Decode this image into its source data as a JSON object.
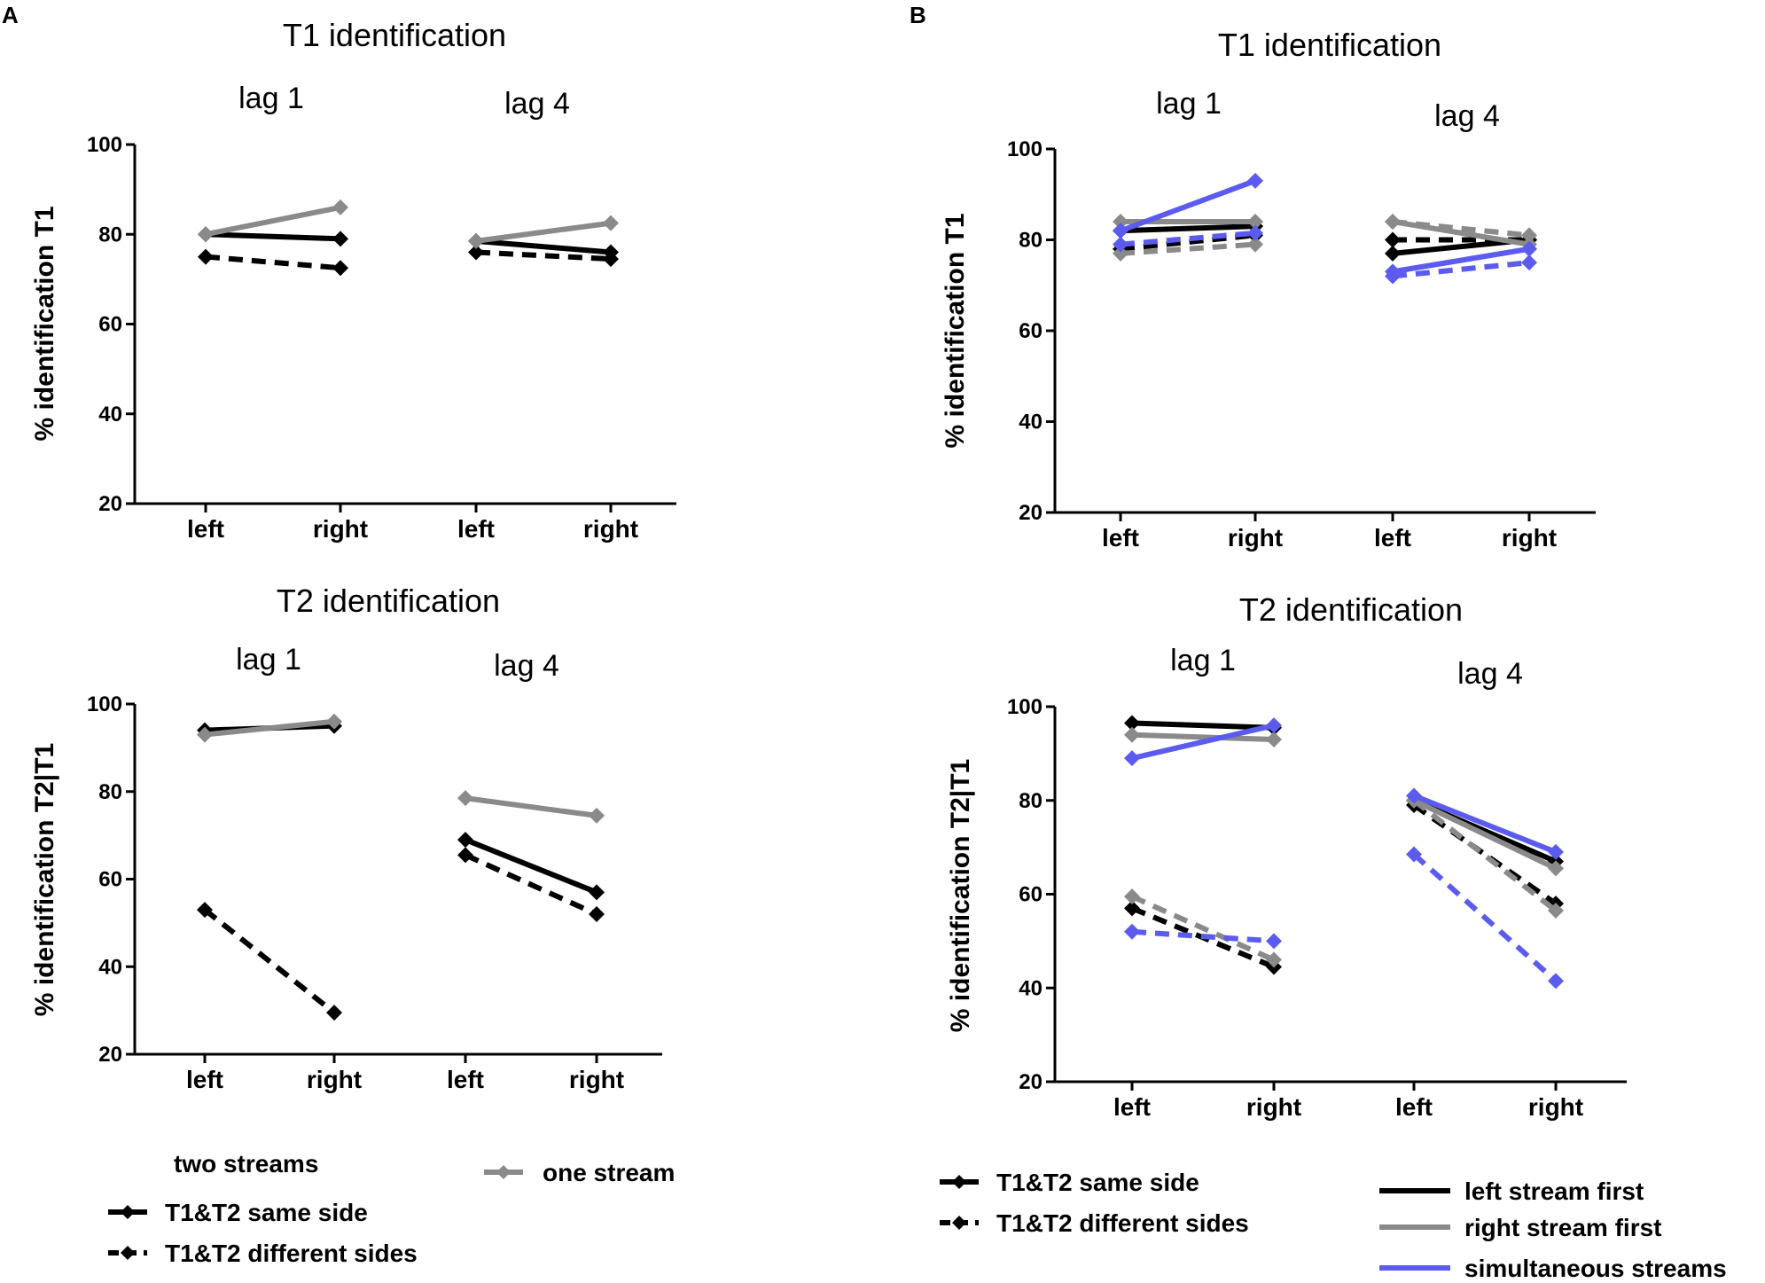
{
  "figure_labels": {
    "a": "A",
    "b": "B"
  },
  "colors": {
    "black": "#000000",
    "gray": "#8a8a8a",
    "blue": "#5b5bf0"
  },
  "chart_data": [
    {
      "id": "A1",
      "type": "line",
      "title": "T1 identification",
      "group_labels": [
        "lag 1",
        "lag 4"
      ],
      "categories": [
        "left",
        "right",
        "left",
        "right"
      ],
      "ylabel": "% identification T1",
      "ylim": [
        20,
        100
      ],
      "yticks": [
        "20",
        "40",
        "60",
        "80",
        "100"
      ],
      "series": [
        {
          "name": "T1&T2 same side",
          "color": "#000000",
          "dash": "solid",
          "lag1": [
            80,
            79
          ],
          "lag4": [
            78.5,
            76
          ]
        },
        {
          "name": "T1&T2 different sides",
          "color": "#000000",
          "dash": "dashed",
          "lag1": [
            75,
            72.5
          ],
          "lag4": [
            76,
            74.5
          ]
        },
        {
          "name": "one stream",
          "color": "#8a8a8a",
          "dash": "solid",
          "lag1": [
            80,
            86
          ],
          "lag4": [
            78.5,
            82.5
          ]
        }
      ]
    },
    {
      "id": "A2",
      "type": "line",
      "title": "T2 identification",
      "group_labels": [
        "lag 1",
        "lag 4"
      ],
      "categories": [
        "left",
        "right",
        "left",
        "right"
      ],
      "ylabel": "% identification T2|T1",
      "ylim": [
        20,
        100
      ],
      "yticks": [
        "20",
        "40",
        "60",
        "80",
        "100"
      ],
      "series": [
        {
          "name": "T1&T2 same side",
          "color": "#000000",
          "dash": "solid",
          "lag1": [
            94,
            95
          ],
          "lag4": [
            69,
            57
          ]
        },
        {
          "name": "T1&T2 different sides",
          "color": "#000000",
          "dash": "dashed",
          "lag1": [
            53,
            29.5
          ],
          "lag4": [
            65.5,
            52
          ]
        },
        {
          "name": "one stream",
          "color": "#8a8a8a",
          "dash": "solid",
          "lag1": [
            93,
            96
          ],
          "lag4": [
            78.5,
            74.5
          ]
        }
      ]
    },
    {
      "id": "B1",
      "type": "line",
      "title": "T1 identification",
      "group_labels": [
        "lag 1",
        "lag 4"
      ],
      "categories": [
        "left",
        "right",
        "left",
        "right"
      ],
      "ylabel": "% identification T1",
      "ylim": [
        20,
        100
      ],
      "yticks": [
        "20",
        "40",
        "60",
        "80",
        "100"
      ],
      "series": [
        {
          "name": "left stream first, T1&T2 same side",
          "color": "#000000",
          "dash": "solid",
          "lag1": [
            82,
            83
          ],
          "lag4": [
            77,
            80
          ]
        },
        {
          "name": "left stream first, T1&T2 different sides",
          "color": "#000000",
          "dash": "dashed",
          "lag1": [
            78,
            81
          ],
          "lag4": [
            80,
            80
          ]
        },
        {
          "name": "right stream first, T1&T2 same side",
          "color": "#8a8a8a",
          "dash": "solid",
          "lag1": [
            84,
            84
          ],
          "lag4": [
            84,
            79
          ]
        },
        {
          "name": "right stream first, T1&T2 different sides",
          "color": "#8a8a8a",
          "dash": "dashed",
          "lag1": [
            77,
            79
          ],
          "lag4": [
            84,
            81
          ]
        },
        {
          "name": "simultaneous streams, T1&T2 same side",
          "color": "#5b5bf0",
          "dash": "solid",
          "lag1": [
            82,
            93
          ],
          "lag4": [
            73,
            78
          ]
        },
        {
          "name": "simultaneous streams, T1&T2 different sides",
          "color": "#5b5bf0",
          "dash": "dashed",
          "lag1": [
            79,
            81.5
          ],
          "lag4": [
            72,
            75
          ]
        }
      ]
    },
    {
      "id": "B2",
      "type": "line",
      "title": "T2 identification",
      "group_labels": [
        "lag 1",
        "lag 4"
      ],
      "categories": [
        "left",
        "right",
        "left",
        "right"
      ],
      "ylabel": "% identification T2|T1",
      "ylim": [
        20,
        100
      ],
      "yticks": [
        "20",
        "40",
        "60",
        "80",
        "100"
      ],
      "series": [
        {
          "name": "left stream first, T1&T2 same side",
          "color": "#000000",
          "dash": "solid",
          "lag1": [
            96.5,
            95.5
          ],
          "lag4": [
            80,
            67
          ]
        },
        {
          "name": "left stream first, T1&T2 different sides",
          "color": "#000000",
          "dash": "dashed",
          "lag1": [
            57,
            44.5
          ],
          "lag4": [
            79,
            58
          ]
        },
        {
          "name": "right stream first, T1&T2 same side",
          "color": "#8a8a8a",
          "dash": "solid",
          "lag1": [
            94,
            93
          ],
          "lag4": [
            80,
            65.5
          ]
        },
        {
          "name": "right stream first, T1&T2 different sides",
          "color": "#8a8a8a",
          "dash": "dashed",
          "lag1": [
            59.5,
            46
          ],
          "lag4": [
            80,
            56.5
          ]
        },
        {
          "name": "simultaneous streams, T1&T2 same side",
          "color": "#5b5bf0",
          "dash": "solid",
          "lag1": [
            89,
            96
          ],
          "lag4": [
            81,
            69
          ]
        },
        {
          "name": "simultaneous streams, T1&T2 different sides",
          "color": "#5b5bf0",
          "dash": "dashed",
          "lag1": [
            52,
            50
          ],
          "lag4": [
            68.5,
            41.5
          ]
        }
      ]
    }
  ],
  "legend_a": {
    "heading": "two streams",
    "same_side": "T1&T2 same side",
    "different_sides": "T1&T2 different sides",
    "one_stream": "one stream"
  },
  "legend_b": {
    "same_side": "T1&T2 same side",
    "different_sides": "T1&T2 different sides",
    "left_first": "left stream first",
    "right_first": "right stream first",
    "simultaneous": "simultaneous streams"
  }
}
